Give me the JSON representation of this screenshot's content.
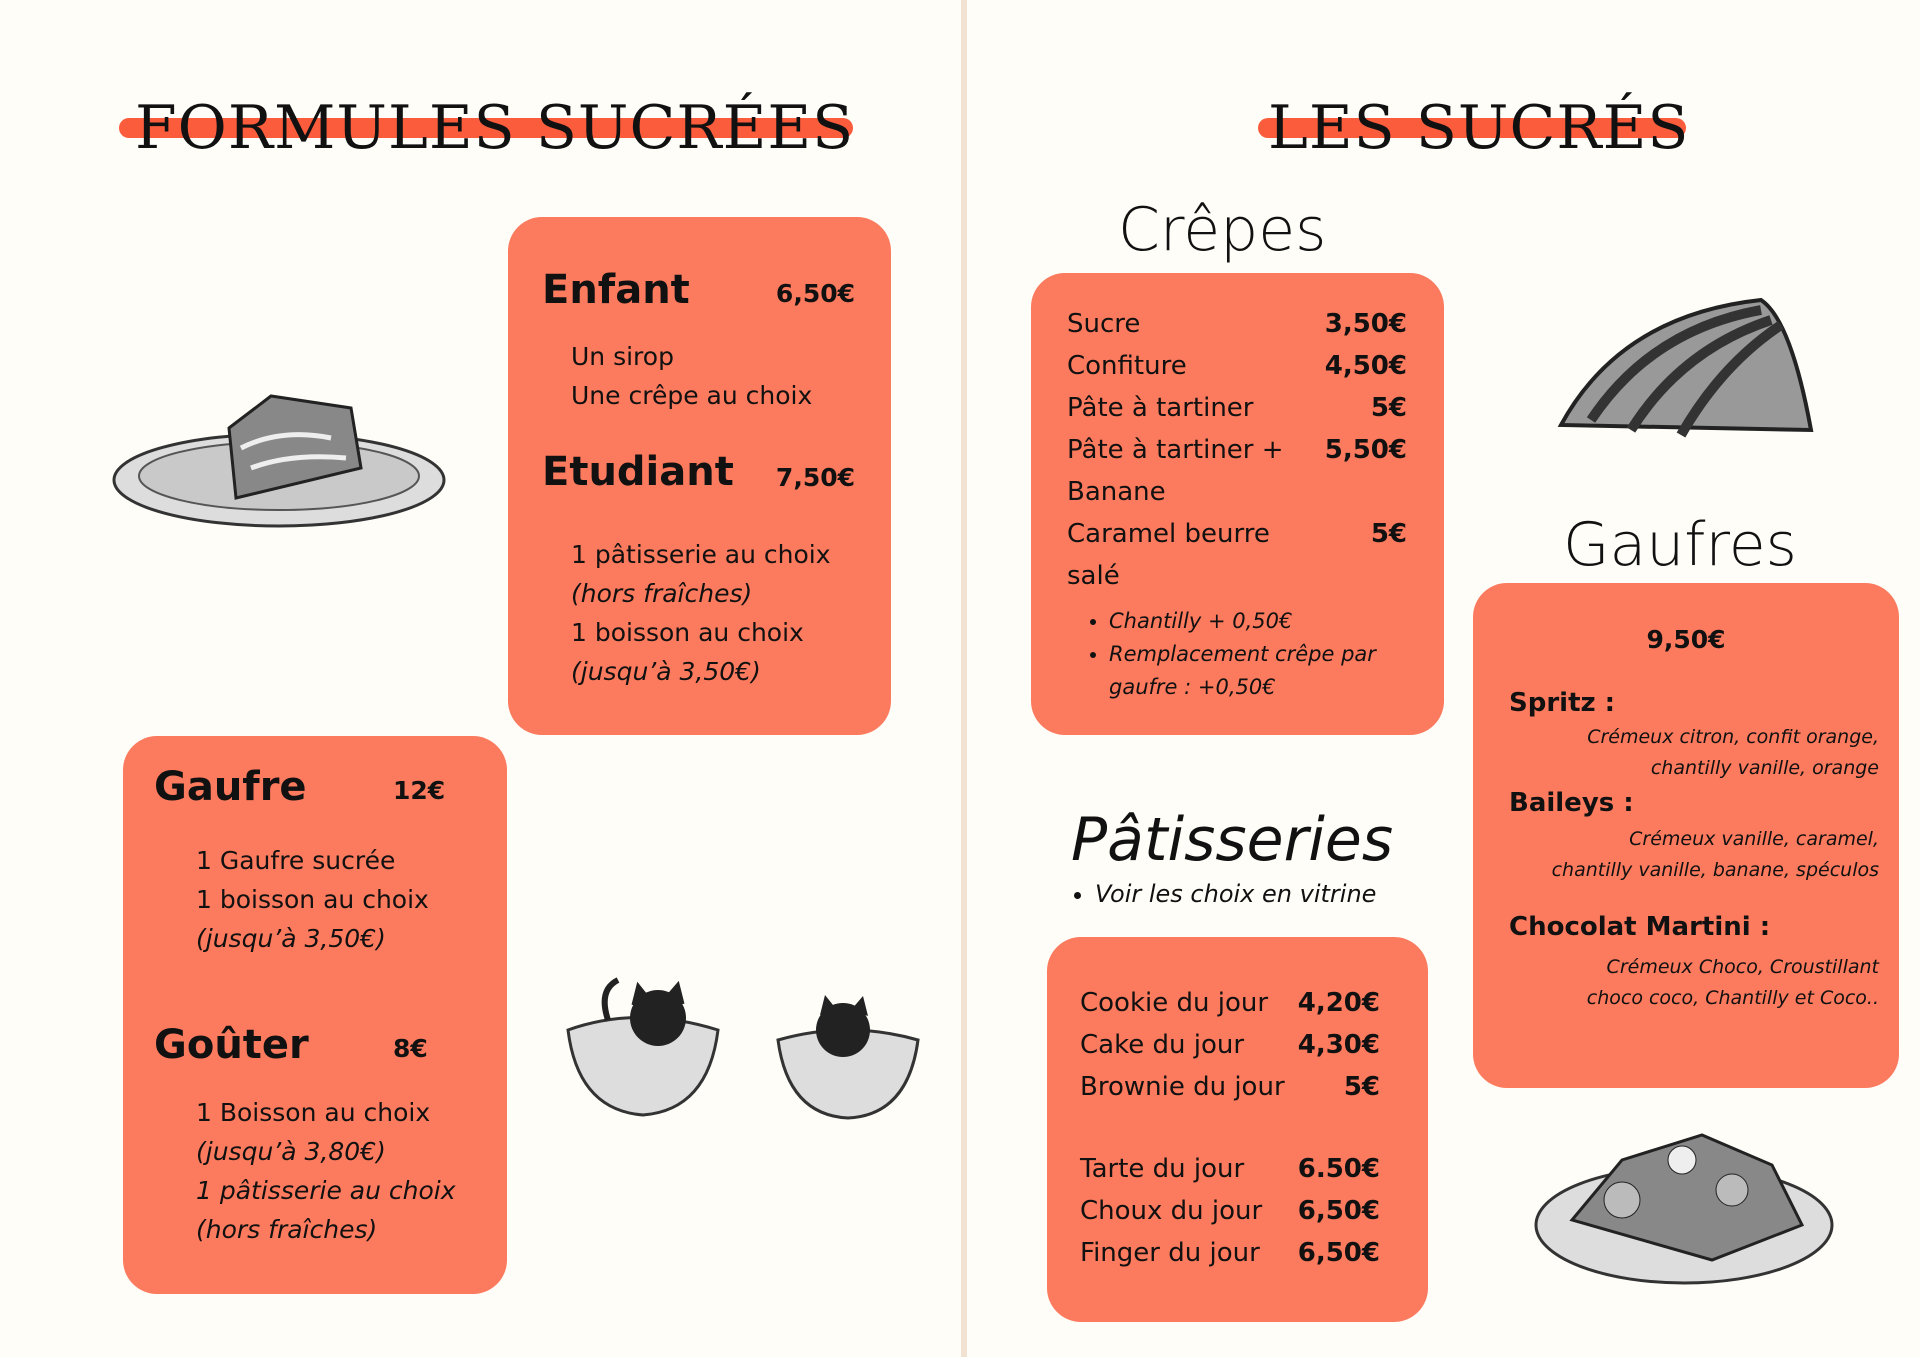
{
  "left": {
    "title": "FORMULES SUCRÉES",
    "enfant": {
      "name": "Enfant",
      "price": "6,50€",
      "items": [
        "Un sirop",
        "Une crêpe au choix"
      ]
    },
    "etudiant": {
      "name": "Etudiant",
      "price": "7,50€",
      "items": [
        "1 pâtisserie au choix",
        "(hors fraîches)",
        "1 boisson au choix",
        "(jusqu’à 3,50€)"
      ]
    },
    "gaufre": {
      "name": "Gaufre",
      "price": "12€",
      "items": [
        "1 Gaufre sucrée",
        "1 boisson au choix",
        "(jusqu’à 3,50€)"
      ]
    },
    "gouter": {
      "name": "Goûter",
      "price": "8€",
      "items": [
        "1 Boisson au choix",
        "(jusqu’à 3,80€)",
        "1 pâtisserie au choix",
        "(hors fraîches)"
      ]
    }
  },
  "right": {
    "title": "LES SUCRÉS",
    "crepes": {
      "heading": "Crêpes",
      "items": [
        {
          "name": "Sucre",
          "price": "3,50€"
        },
        {
          "name": "Confiture",
          "price": "4,50€"
        },
        {
          "name": "Pâte à tartiner",
          "price": "5€"
        },
        {
          "name": "Pâte à tartiner +",
          "price": "5,50€"
        },
        {
          "name": "Banane",
          "price": ""
        },
        {
          "name": "Caramel beurre",
          "price": "5€"
        },
        {
          "name": "salé",
          "price": ""
        }
      ],
      "extras": [
        "Chantilly + 0,50€",
        "Remplacement crêpe par gaufre : +0,50€"
      ]
    },
    "patisseries": {
      "heading": "Pâtisseries",
      "note": "Voir les choix en vitrine",
      "items": [
        {
          "name": "Cookie du jour",
          "price": "4,20€"
        },
        {
          "name": "Cake du jour",
          "price": "4,30€"
        },
        {
          "name": "Brownie du jour",
          "price": "5€"
        },
        {
          "name": "Tarte du jour",
          "price": "6.50€"
        },
        {
          "name": "Choux du jour",
          "price": "6,50€"
        },
        {
          "name": "Finger du jour",
          "price": "6,50€"
        }
      ]
    },
    "gaufres": {
      "heading": "Gaufres",
      "price": "9,50€",
      "items": [
        {
          "name": "Spritz :",
          "desc": [
            "Crémeux citron, confit orange,",
            "chantilly vanille, orange"
          ]
        },
        {
          "name": "Baileys :",
          "desc": [
            "Crémeux vanille, caramel,",
            "chantilly vanille, banane, spéculos"
          ]
        },
        {
          "name": "Chocolat Martini :",
          "desc": [
            "Crémeux Choco, Croustillant",
            "choco coco,  Chantilly et Coco.."
          ]
        }
      ]
    }
  },
  "colors": {
    "accent": "#FC7A5D",
    "title_bar": "#FA5C3C",
    "background": "#FEFDF8"
  }
}
